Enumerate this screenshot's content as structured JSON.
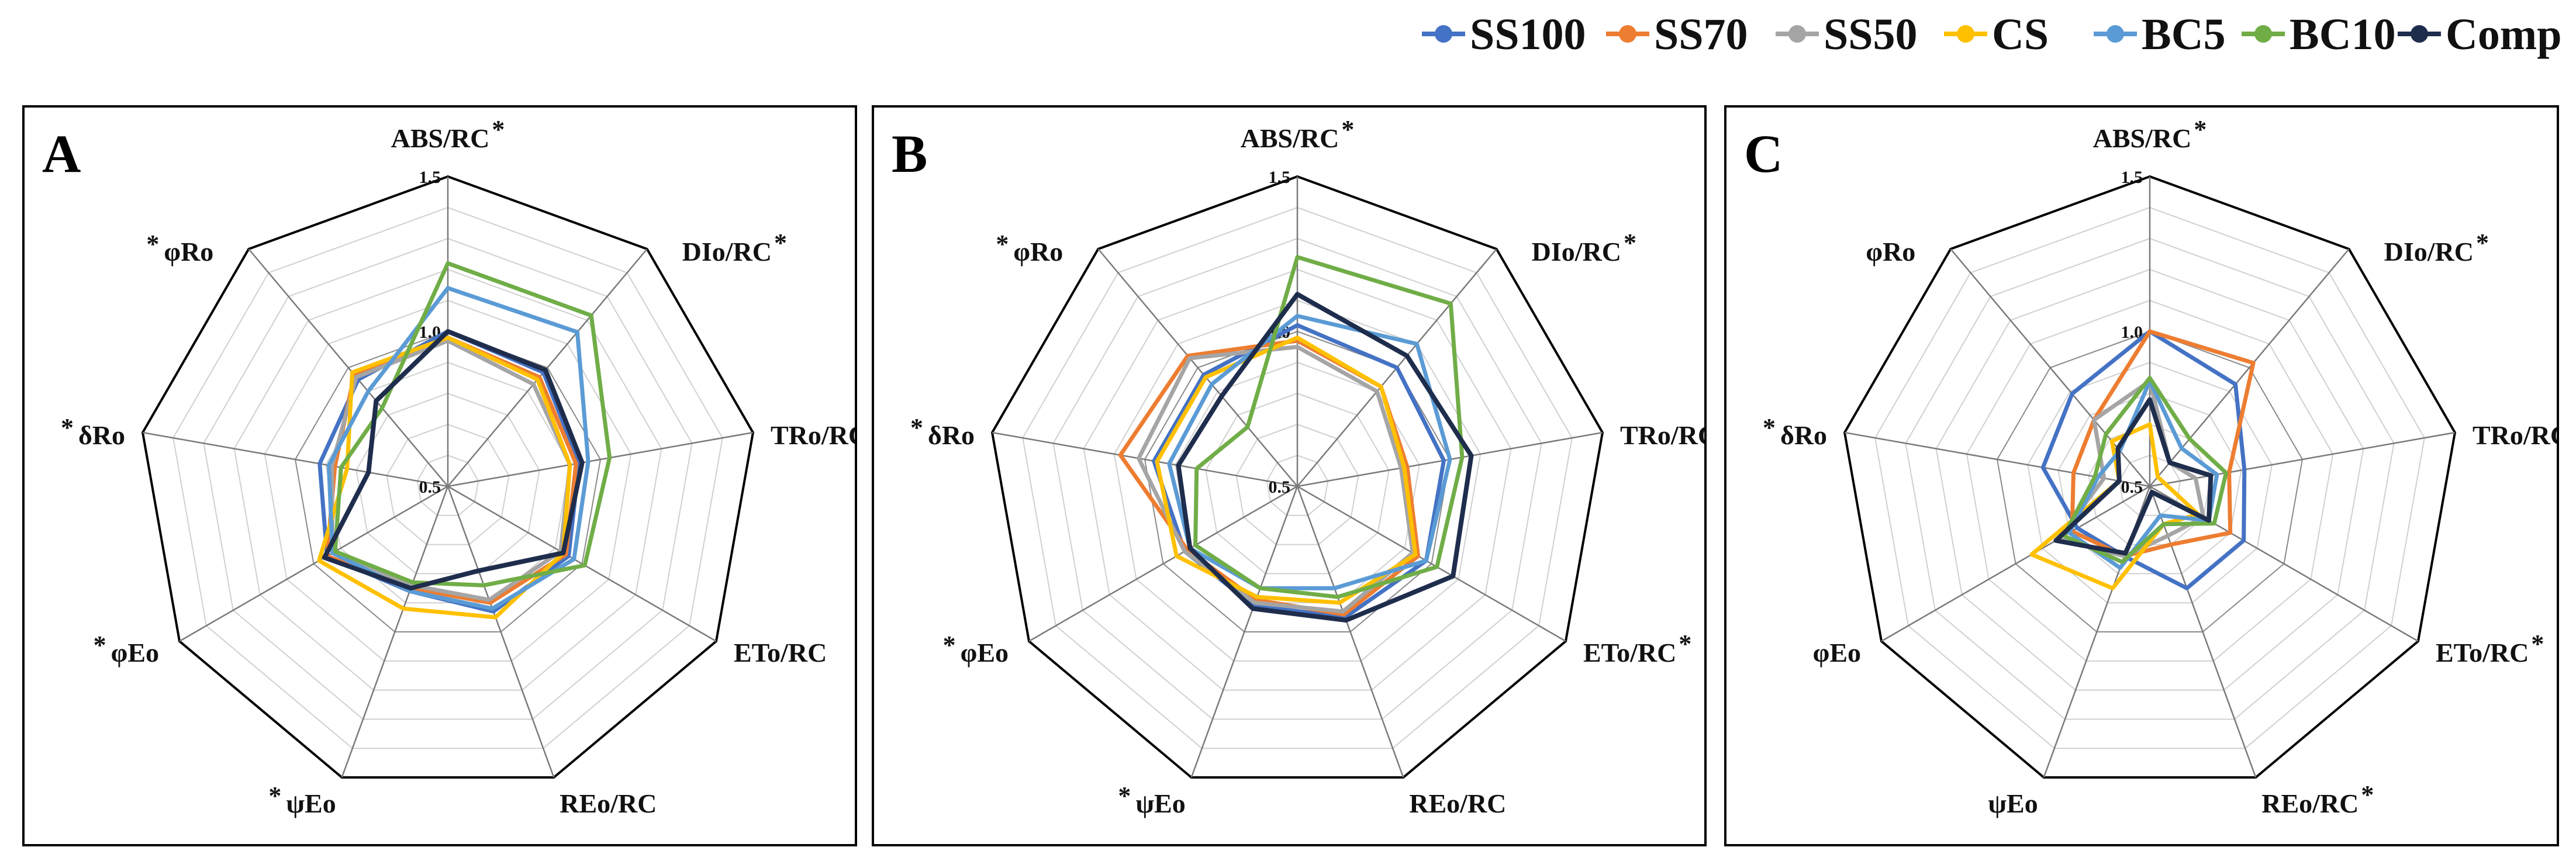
{
  "legend": [
    {
      "name": "SS100",
      "color": "#4472C4"
    },
    {
      "name": "SS70",
      "color": "#ED7D31"
    },
    {
      "name": "SS50",
      "color": "#A5A5A5"
    },
    {
      "name": "CS",
      "color": "#FFC000"
    },
    {
      "name": "BC5",
      "color": "#5B9BD5"
    },
    {
      "name": "BC10",
      "color": "#70AD47"
    },
    {
      "name": "Comp",
      "color": "#1F2D4D"
    }
  ],
  "chart_data": [
    {
      "type": "radar",
      "panel_label": "A",
      "categories": [
        "ABS/RC",
        "DIo/RC",
        "TRo/RC",
        "ETo/RC",
        "REo/RC",
        "ψEo",
        "φEo",
        "δRo",
        "φRo"
      ],
      "category_marks": [
        "*",
        "*",
        "*",
        "",
        "",
        "*",
        "*",
        "*",
        "*"
      ],
      "rlim": [
        0.5,
        1.5
      ],
      "ticks": [
        "0.5",
        "1.0",
        "1.5"
      ],
      "grid_step": 0.1,
      "series": [
        {
          "name": "SS100",
          "values": [
            1.0,
            0.98,
            0.93,
            0.95,
            0.93,
            0.86,
            0.95,
            0.92,
            0.95
          ]
        },
        {
          "name": "SS70",
          "values": [
            0.98,
            0.96,
            0.92,
            0.94,
            0.9,
            0.85,
            0.95,
            0.87,
            0.97
          ]
        },
        {
          "name": "SS50",
          "values": [
            0.97,
            0.93,
            0.9,
            0.92,
            0.89,
            0.84,
            0.93,
            0.88,
            0.96
          ]
        },
        {
          "name": "CS",
          "values": [
            0.98,
            0.95,
            0.9,
            0.93,
            0.95,
            0.92,
            0.98,
            0.83,
            0.98
          ]
        },
        {
          "name": "BC5",
          "values": [
            1.14,
            1.15,
            0.96,
            0.97,
            0.92,
            0.86,
            0.93,
            0.89,
            0.9
          ]
        },
        {
          "name": "BC10",
          "values": [
            1.22,
            1.22,
            1.03,
            1.01,
            0.84,
            0.83,
            0.92,
            0.85,
            0.83
          ]
        },
        {
          "name": "Comp",
          "values": [
            1.0,
            0.99,
            0.94,
            0.93,
            0.79,
            0.85,
            0.96,
            0.76,
            0.86
          ]
        }
      ]
    },
    {
      "type": "radar",
      "panel_label": "B",
      "categories": [
        "ABS/RC",
        "DIo/RC",
        "TRo/RC",
        "ETo/RC",
        "REo/RC",
        "ψEo",
        "φEo",
        "δRo",
        "φRo"
      ],
      "category_marks": [
        "*",
        "*",
        "*",
        "*",
        "",
        "*",
        "*",
        "*",
        "*"
      ],
      "rlim": [
        0.5,
        1.5
      ],
      "ticks": [
        "0.5",
        "1.0",
        "1.5"
      ],
      "grid_step": 0.1,
      "series": [
        {
          "name": "SS100",
          "values": [
            1.02,
            1.0,
            0.98,
            0.98,
            0.95,
            0.91,
            0.92,
            0.97,
            0.97
          ]
        },
        {
          "name": "SS70",
          "values": [
            0.97,
            0.92,
            0.86,
            0.95,
            0.94,
            0.89,
            0.91,
            1.08,
            1.05
          ]
        },
        {
          "name": "SS50",
          "values": [
            0.95,
            0.9,
            0.84,
            0.93,
            0.93,
            0.9,
            0.92,
            1.02,
            1.04
          ]
        },
        {
          "name": "CS",
          "values": [
            0.98,
            0.92,
            0.85,
            0.94,
            0.9,
            0.88,
            0.95,
            0.96,
            0.96
          ]
        },
        {
          "name": "BC5",
          "values": [
            1.05,
            1.1,
            1.0,
            0.98,
            0.85,
            0.85,
            0.9,
            0.92,
            0.93
          ]
        },
        {
          "name": "BC10",
          "values": [
            1.24,
            1.27,
            1.04,
            1.02,
            0.88,
            0.85,
            0.88,
            0.83,
            0.75
          ]
        },
        {
          "name": "Comp",
          "values": [
            1.12,
            1.05,
            1.07,
            1.08,
            0.96,
            0.92,
            0.9,
            0.89,
            0.88
          ]
        }
      ]
    },
    {
      "type": "radar",
      "panel_label": "C",
      "categories": [
        "ABS/RC",
        "DIo/RC",
        "TRo/RC",
        "ETo/RC",
        "REo/RC",
        "ψEo",
        "φEo",
        "δRo",
        "φRo"
      ],
      "category_marks": [
        "*",
        "*",
        "*",
        "*",
        "*",
        "",
        "",
        "*",
        ""
      ],
      "rlim": [
        0.5,
        1.5
      ],
      "ticks": [
        "0.5",
        "1.0",
        "1.5"
      ],
      "grid_step": 0.1,
      "series": [
        {
          "name": "SS100",
          "values": [
            1.0,
            0.93,
            0.81,
            0.85,
            0.85,
            0.74,
            0.77,
            0.85,
            0.89
          ]
        },
        {
          "name": "SS70",
          "values": [
            1.0,
            1.02,
            0.76,
            0.8,
            0.7,
            0.74,
            0.79,
            0.75,
            0.78
          ]
        },
        {
          "name": "SS50",
          "values": [
            0.84,
            0.6,
            0.65,
            0.7,
            0.67,
            0.74,
            0.84,
            0.65,
            0.78
          ]
        },
        {
          "name": "CS",
          "values": [
            0.7,
            0.54,
            0.55,
            0.68,
            0.63,
            0.85,
            0.94,
            0.6,
            0.69
          ]
        },
        {
          "name": "BC5",
          "values": [
            0.84,
            0.66,
            0.72,
            0.72,
            0.6,
            0.78,
            0.8,
            0.67,
            0.65
          ]
        },
        {
          "name": "BC10",
          "values": [
            0.85,
            0.7,
            0.75,
            0.74,
            0.63,
            0.76,
            0.82,
            0.68,
            0.72
          ]
        },
        {
          "name": "Comp",
          "values": [
            0.78,
            0.6,
            0.7,
            0.72,
            0.52,
            0.73,
            0.85,
            0.6,
            0.66
          ]
        }
      ]
    }
  ]
}
